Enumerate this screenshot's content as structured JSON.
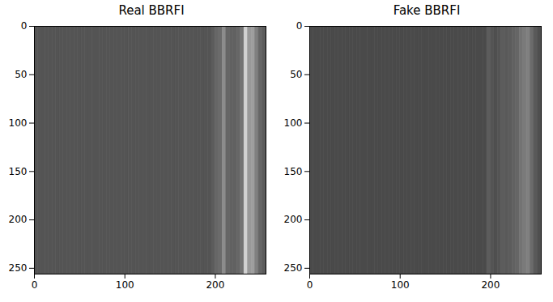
{
  "chart_data": [
    {
      "type": "heatmap",
      "title": "Real BBRFI",
      "bins": [
        0,
        4,
        8,
        12,
        16,
        20,
        24,
        28,
        32,
        36,
        40,
        44,
        48,
        52,
        56,
        60,
        64,
        68,
        72,
        76,
        80,
        84,
        88,
        92,
        96,
        100,
        104,
        108,
        112,
        116,
        120,
        124,
        128,
        132,
        136,
        140,
        144,
        148,
        152,
        156,
        160,
        164,
        168,
        172,
        176,
        180,
        184,
        188,
        192,
        196,
        200,
        204,
        208,
        212,
        216,
        220,
        224,
        228,
        232,
        236,
        240,
        244,
        248,
        252,
        256
      ],
      "values": [
        0.33,
        0.33,
        0.33,
        0.33,
        0.33,
        0.33,
        0.33,
        0.33,
        0.33,
        0.33,
        0.33,
        0.33,
        0.33,
        0.33,
        0.33,
        0.33,
        0.33,
        0.33,
        0.33,
        0.33,
        0.33,
        0.33,
        0.33,
        0.33,
        0.33,
        0.33,
        0.33,
        0.33,
        0.33,
        0.33,
        0.33,
        0.33,
        0.33,
        0.33,
        0.33,
        0.33,
        0.33,
        0.33,
        0.33,
        0.33,
        0.33,
        0.33,
        0.33,
        0.33,
        0.33,
        0.33,
        0.33,
        0.33,
        0.33,
        0.36,
        0.4,
        0.42,
        0.55,
        0.4,
        0.38,
        0.38,
        0.4,
        0.45,
        0.82,
        0.6,
        0.62,
        0.5,
        0.4,
        0.36
      ],
      "zlim": [
        0,
        1
      ],
      "xlim": [
        0,
        256
      ],
      "ylim": [
        256,
        0
      ],
      "xticks": [
        0,
        100,
        200
      ],
      "yticks": [
        0,
        50,
        100,
        150,
        200,
        250
      ]
    },
    {
      "type": "heatmap",
      "title": "Fake BBRFI",
      "bins": [
        0,
        4,
        8,
        12,
        16,
        20,
        24,
        28,
        32,
        36,
        40,
        44,
        48,
        52,
        56,
        60,
        64,
        68,
        72,
        76,
        80,
        84,
        88,
        92,
        96,
        100,
        104,
        108,
        112,
        116,
        120,
        124,
        128,
        132,
        136,
        140,
        144,
        148,
        152,
        156,
        160,
        164,
        168,
        172,
        176,
        180,
        184,
        188,
        192,
        196,
        200,
        204,
        208,
        212,
        216,
        220,
        224,
        228,
        232,
        236,
        240,
        244,
        248,
        252,
        256
      ],
      "values": [
        0.29,
        0.29,
        0.29,
        0.29,
        0.29,
        0.29,
        0.29,
        0.29,
        0.29,
        0.29,
        0.29,
        0.29,
        0.29,
        0.29,
        0.29,
        0.29,
        0.29,
        0.29,
        0.29,
        0.29,
        0.29,
        0.29,
        0.29,
        0.29,
        0.29,
        0.29,
        0.29,
        0.29,
        0.29,
        0.29,
        0.29,
        0.29,
        0.29,
        0.29,
        0.29,
        0.29,
        0.29,
        0.29,
        0.29,
        0.29,
        0.29,
        0.29,
        0.29,
        0.29,
        0.29,
        0.29,
        0.29,
        0.29,
        0.29,
        0.36,
        0.33,
        0.31,
        0.33,
        0.36,
        0.35,
        0.36,
        0.38,
        0.4,
        0.45,
        0.48,
        0.5,
        0.42,
        0.35,
        0.31
      ],
      "zlim": [
        0,
        1
      ],
      "xlim": [
        0,
        256
      ],
      "ylim": [
        256,
        0
      ],
      "xticks": [
        0,
        100,
        200
      ],
      "yticks": [
        0,
        50,
        100,
        150,
        200,
        250
      ]
    }
  ]
}
